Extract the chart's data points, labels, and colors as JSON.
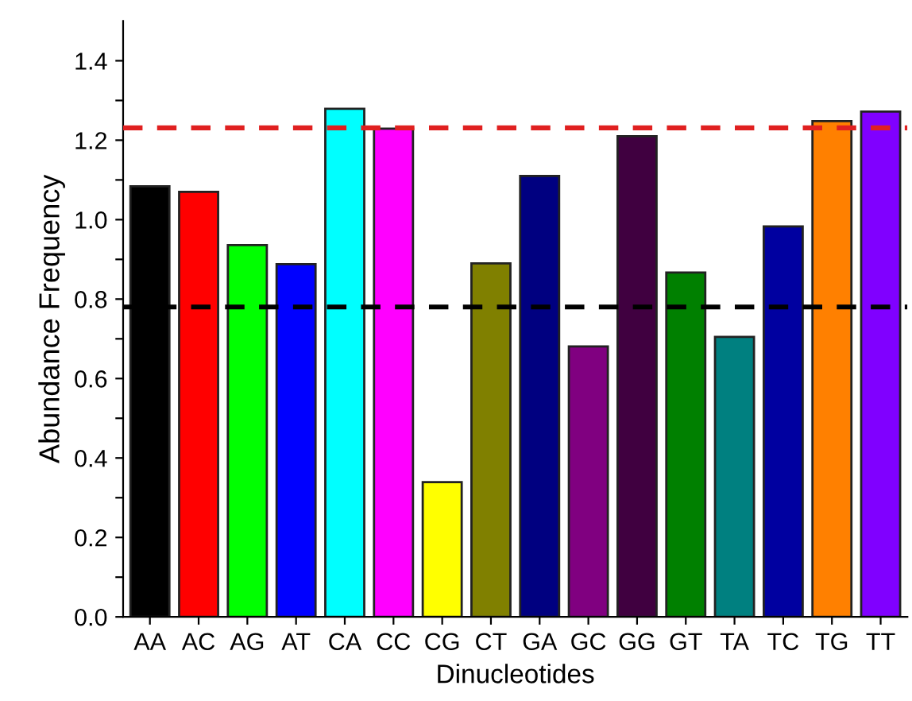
{
  "chart_data": {
    "type": "bar",
    "xlabel": "Dinucleotides",
    "ylabel": "Abundance Frequency",
    "categories": [
      "AA",
      "AC",
      "AG",
      "AT",
      "CA",
      "CC",
      "CG",
      "CT",
      "GA",
      "GC",
      "GG",
      "GT",
      "TA",
      "TC",
      "TG",
      "TT"
    ],
    "values": [
      1.084,
      1.07,
      0.936,
      0.888,
      1.279,
      1.229,
      0.339,
      0.89,
      1.11,
      0.681,
      1.21,
      0.867,
      0.705,
      0.983,
      1.248,
      1.272
    ],
    "colors": [
      "#000000",
      "#ff0000",
      "#00ff00",
      "#0000ff",
      "#00ffff",
      "#ff00ff",
      "#ffff00",
      "#808000",
      "#000080",
      "#800080",
      "#400040",
      "#008000",
      "#008080",
      "#0000a0",
      "#ff8000",
      "#8000ff"
    ],
    "ylim": [
      0,
      1.5
    ],
    "yticks": [
      "0.0",
      {
        "value": 0.1,
        "label": null
      },
      {
        "value": 0.2,
        "label": "0.2"
      },
      {
        "value": 0.3,
        "label": null
      },
      {
        "value": 0.4,
        "label": "0.4"
      },
      {
        "value": 0.5,
        "label": null
      },
      {
        "value": 0.6,
        "label": "0.6"
      },
      {
        "value": 0.7,
        "label": null
      },
      {
        "value": 0.8,
        "label": "0.8"
      },
      {
        "value": 0.9,
        "label": null
      },
      {
        "value": 1.0,
        "label": "1.0"
      },
      {
        "value": 1.1,
        "label": null
      },
      {
        "value": 1.2,
        "label": "1.2"
      },
      {
        "value": 1.3,
        "label": null
      },
      {
        "value": 1.4,
        "label": "1.4"
      }
    ],
    "ref_lines": [
      {
        "axis": "y",
        "value": 1.231,
        "color": "#e02020",
        "line_style": "dashed"
      },
      {
        "axis": "y",
        "value": 0.78,
        "color": "#000000",
        "line_style": "dashed"
      }
    ],
    "grid": false,
    "legend": false
  }
}
